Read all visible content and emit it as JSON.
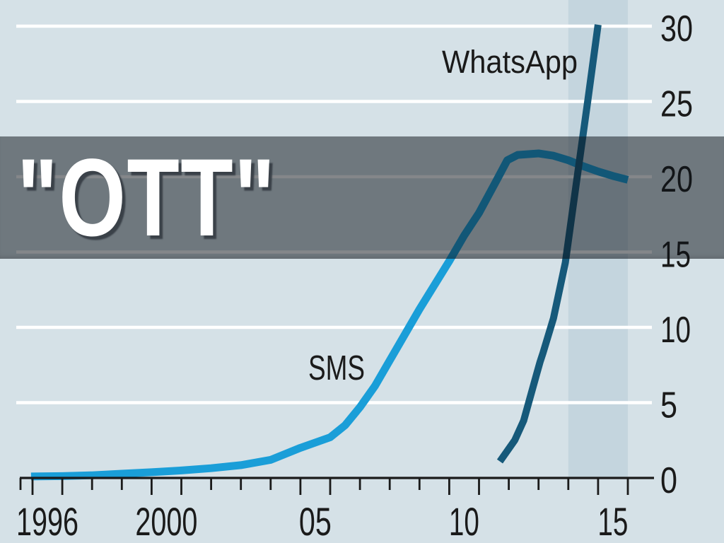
{
  "overlay": {
    "text": "\"OTT\""
  },
  "colors": {
    "background": "#d5e1e7",
    "forecast_band": "#c4d5de",
    "gridline": "#ffffff",
    "axis": "#1a1a1a",
    "label_text": "#1a1a1a",
    "overlay_scrim": "rgba(10,16,22,0.5)",
    "overlay_text": "#ffffff",
    "overlay_text_shadow": "rgba(52,59,66,0.9)"
  },
  "chart_data": {
    "type": "line",
    "x_axis": {
      "tick_years": [
        1996,
        1997,
        1998,
        1999,
        2000,
        2001,
        2002,
        2003,
        2004,
        2005,
        2006,
        2007,
        2008,
        2009,
        2010,
        2011,
        2012,
        2013,
        2014,
        2015,
        2016
      ],
      "major_tick_years": [
        1996,
        1997,
        2000,
        2001,
        2005,
        2006,
        2010,
        2011,
        2015,
        2016
      ],
      "tick_labels": [
        {
          "year": 1996,
          "text": "1996"
        },
        {
          "year": 2000,
          "text": "2000"
        },
        {
          "year": 2005,
          "text": "05"
        },
        {
          "year": 2010,
          "text": "10"
        },
        {
          "year": 2015,
          "text": "15"
        }
      ]
    },
    "y_axis": {
      "tick_labels": [
        {
          "value": 0,
          "text": "0"
        },
        {
          "value": 5,
          "text": "5"
        },
        {
          "value": 10,
          "text": "10"
        },
        {
          "value": 15,
          "text": "15"
        },
        {
          "value": 20,
          "text": "20"
        },
        {
          "value": 25,
          "text": "25"
        },
        {
          "value": 30,
          "text": "30"
        }
      ]
    },
    "ylim": [
      0,
      30
    ],
    "xlim": [
      1995.5,
      2016.9
    ],
    "grid": true,
    "forecast_band": {
      "from_year": 2014,
      "to_year": 2016
    },
    "series": [
      {
        "name": "SMS",
        "color": "#1a9ed8",
        "stroke_width": 11,
        "points": [
          [
            1995.95,
            0.1
          ],
          [
            1997,
            0.12
          ],
          [
            1998,
            0.18
          ],
          [
            1999,
            0.28
          ],
          [
            2000,
            0.38
          ],
          [
            2001,
            0.5
          ],
          [
            2002,
            0.65
          ],
          [
            2003,
            0.85
          ],
          [
            2004,
            1.2
          ],
          [
            2005,
            2.0
          ],
          [
            2006,
            2.7
          ],
          [
            2006.5,
            3.5
          ],
          [
            2007,
            4.7
          ],
          [
            2007.5,
            6.1
          ],
          [
            2008,
            7.8
          ],
          [
            2009,
            11.2
          ],
          [
            2010,
            14.4
          ],
          [
            2010.5,
            16.1
          ],
          [
            2011,
            17.6
          ],
          [
            2011.6,
            19.8
          ],
          [
            2011.95,
            21.1
          ],
          [
            2012.3,
            21.45
          ],
          [
            2013,
            21.55
          ],
          [
            2013.5,
            21.4
          ],
          [
            2014,
            21.1
          ],
          [
            2014.5,
            20.7
          ],
          [
            2015,
            20.35
          ],
          [
            2015.5,
            20.05
          ],
          [
            2016,
            19.8
          ]
        ]
      },
      {
        "name": "WhatsApp",
        "color": "#16597a",
        "stroke_width": 10,
        "points": [
          [
            2011.7,
            1.1
          ],
          [
            2012.2,
            2.5
          ],
          [
            2012.5,
            3.8
          ],
          [
            2012.95,
            7.0
          ],
          [
            2013.05,
            7.7
          ],
          [
            2013.15,
            8.3
          ],
          [
            2013.5,
            10.6
          ],
          [
            2013.9,
            14.3
          ],
          [
            2014.3,
            20.0
          ],
          [
            2014.65,
            25.0
          ],
          [
            2015.0,
            30.1
          ]
        ]
      }
    ]
  }
}
